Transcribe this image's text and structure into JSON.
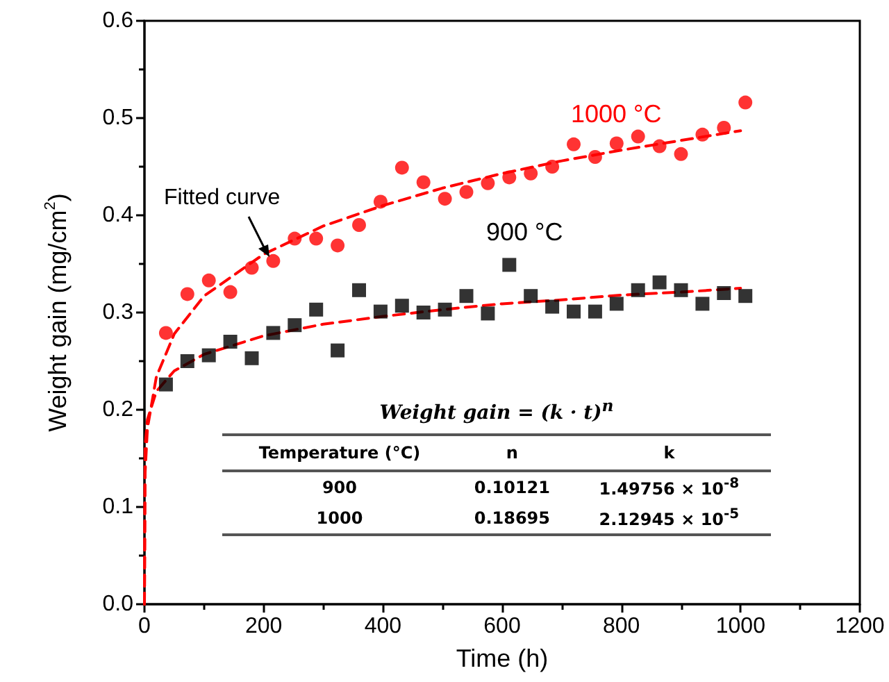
{
  "chart_data": {
    "type": "scatter",
    "xlabel": "Time (h)",
    "ylabel": "Weight gain (mg/cm$^{2}$)",
    "xlim": [
      0,
      1200
    ],
    "xticks": [
      0,
      200,
      400,
      600,
      800,
      1000,
      1200
    ],
    "ylim": [
      0,
      0.6
    ],
    "yticks": [
      {
        "value": 0,
        "label": "0.0"
      },
      0.1,
      0.2,
      0.3,
      0.4,
      0.5,
      0.6
    ],
    "grid": false,
    "legend": false,
    "x": [
      36,
      72,
      108,
      144,
      180,
      216,
      252,
      288,
      324,
      360,
      396,
      432,
      468,
      504,
      540,
      576,
      612,
      648,
      684,
      720,
      756,
      792,
      828,
      864,
      900,
      936,
      972,
      1008
    ],
    "series": [
      {
        "name": "1000 °C",
        "marker": "circle",
        "color": "#ff0000",
        "values": [
          0.279,
          0.319,
          0.333,
          0.321,
          0.346,
          0.353,
          0.376,
          0.376,
          0.369,
          0.39,
          0.414,
          0.449,
          0.434,
          0.417,
          0.424,
          0.433,
          0.439,
          0.443,
          0.45,
          0.473,
          0.46,
          0.474,
          0.481,
          0.471,
          0.463,
          0.483,
          0.49,
          0.516
        ]
      },
      {
        "name": "900 °C",
        "marker": "square",
        "color": "#000000",
        "values": [
          0.226,
          0.25,
          0.256,
          0.27,
          0.253,
          0.279,
          0.287,
          0.303,
          0.261,
          0.323,
          0.301,
          0.307,
          0.3,
          0.303,
          0.317,
          0.299,
          0.349,
          0.317,
          0.306,
          0.301,
          0.301,
          0.309,
          0.323,
          0.331,
          0.323,
          0.309,
          0.32,
          0.317
        ]
      },
      {
        "type": "line",
        "marker": "none",
        "line_style": "dashed",
        "color": "#ff0000",
        "x": [
          0,
          1,
          5,
          20,
          50,
          100,
          200,
          300,
          400,
          500,
          600,
          700,
          800,
          900,
          1000
        ],
        "values": [
          0,
          0.134,
          0.181,
          0.234,
          0.278,
          0.317,
          0.36,
          0.389,
          0.41,
          0.428,
          0.443,
          0.456,
          0.467,
          0.477,
          0.487
        ]
      },
      {
        "type": "line",
        "marker": "none",
        "line_style": "dashed",
        "color": "#ff0000",
        "x": [
          0,
          1,
          5,
          20,
          50,
          100,
          200,
          300,
          400,
          500,
          600,
          700,
          800,
          900,
          1000
        ],
        "values": [
          0,
          0.162,
          0.19,
          0.219,
          0.24,
          0.257,
          0.276,
          0.288,
          0.296,
          0.303,
          0.309,
          0.313,
          0.318,
          0.321,
          0.325
        ]
      }
    ],
    "annotations": [
      "Fitted curve",
      "Weight gain = (k · t)$^{n}$",
      "Temperature (°C)",
      "n",
      "k",
      "900",
      "0.10121",
      "1.49756 × 10$^{-8}$",
      "1000",
      "0.18695",
      "2.12945 × 10$^{-5}$"
    ]
  }
}
